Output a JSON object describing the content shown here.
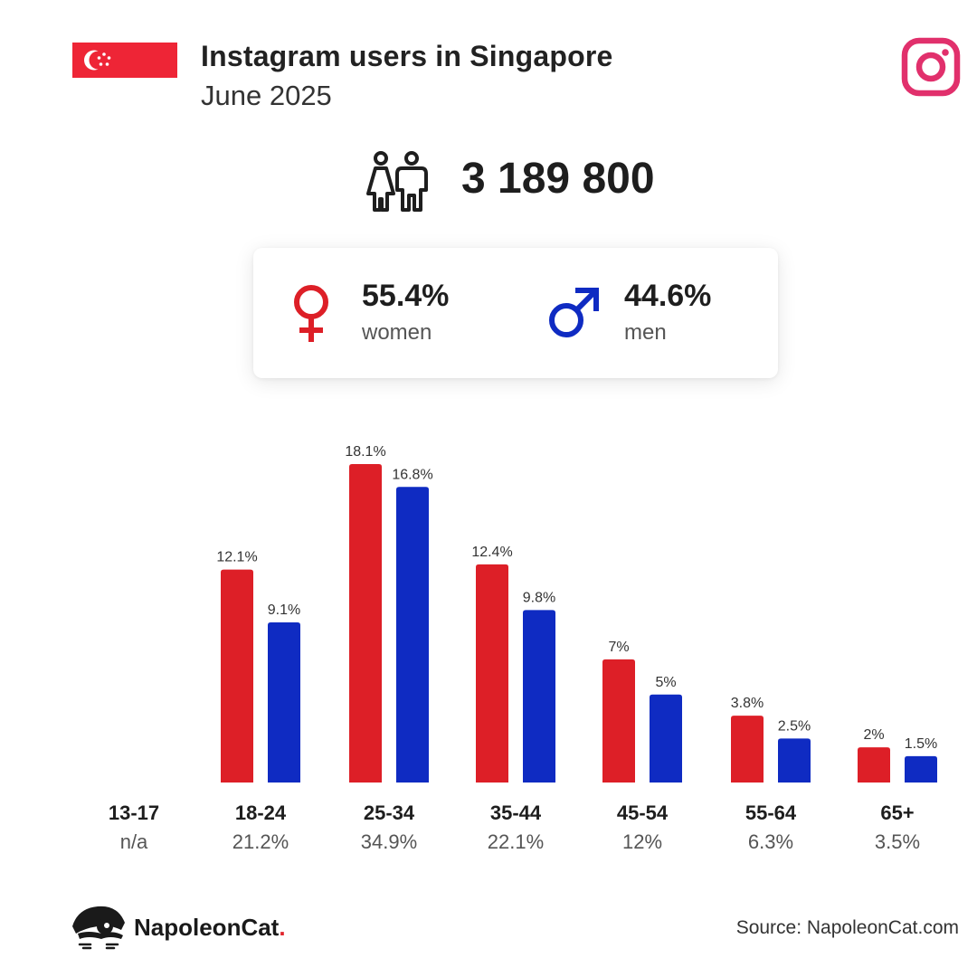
{
  "header": {
    "title": "Instagram users in Singapore",
    "subtitle": "June 2025"
  },
  "total": {
    "value": "3 189 800"
  },
  "gender": {
    "women": {
      "pct": "55.4%",
      "label": "women"
    },
    "men": {
      "pct": "44.6%",
      "label": "men"
    }
  },
  "colors": {
    "women": "#dd1f27",
    "men": "#0f2bc2",
    "flag_red": "#ee2536",
    "instagram": "#e1306c"
  },
  "icons": [
    "singapore-flag-icon",
    "instagram-icon",
    "people-icon",
    "female-icon",
    "male-icon",
    "napoleoncat-logo-icon"
  ],
  "chart_data": {
    "type": "bar",
    "categories": [
      "13-17",
      "18-24",
      "25-34",
      "35-44",
      "45-54",
      "55-64",
      "65+"
    ],
    "category_totals": [
      "n/a",
      "21.2%",
      "34.9%",
      "22.1%",
      "12%",
      "6.3%",
      "3.5%"
    ],
    "series": [
      {
        "name": "women",
        "values": [
          null,
          12.1,
          18.1,
          12.4,
          7,
          3.8,
          2
        ],
        "labels": [
          "",
          "12.1%",
          "18.1%",
          "12.4%",
          "7%",
          "3.8%",
          "2%"
        ]
      },
      {
        "name": "men",
        "values": [
          null,
          9.1,
          16.8,
          9.8,
          5,
          2.5,
          1.5
        ],
        "labels": [
          "",
          "9.1%",
          "16.8%",
          "9.8%",
          "5%",
          "2.5%",
          "1.5%"
        ]
      }
    ],
    "ylim": [
      0,
      18.1
    ],
    "grid": false,
    "legend": "none"
  },
  "footer": {
    "brand": "NapoleonCat",
    "brand_dot": ".",
    "source": "Source: NapoleonCat.com"
  }
}
